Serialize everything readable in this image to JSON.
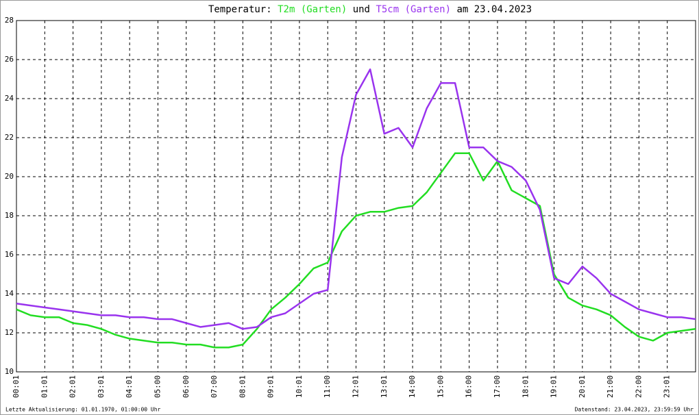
{
  "chart_data": {
    "type": "line",
    "title_prefix": "Temperatur:",
    "title_joiner": "und",
    "title_suffix": "am 23.04.2023",
    "x": [
      0,
      0.5,
      1,
      1.5,
      2,
      2.5,
      3,
      3.5,
      4,
      4.5,
      5,
      5.5,
      6,
      6.5,
      7,
      7.5,
      8,
      8.5,
      9,
      9.5,
      10,
      10.5,
      11,
      11.5,
      12,
      12.5,
      13,
      13.5,
      14,
      14.5,
      15,
      15.5,
      16,
      16.5,
      17,
      17.5,
      18,
      18.5,
      19,
      19.5,
      20,
      20.5,
      21,
      21.5,
      22,
      22.5,
      23,
      23.5,
      24
    ],
    "series": [
      {
        "name": "T2m (Garten)",
        "color": "#22dd22",
        "values": [
          13.2,
          12.9,
          12.8,
          12.8,
          12.5,
          12.4,
          12.2,
          11.9,
          11.7,
          11.6,
          11.5,
          11.5,
          11.4,
          11.4,
          11.25,
          11.25,
          11.4,
          12.2,
          13.2,
          13.8,
          14.5,
          15.3,
          15.6,
          17.2,
          18.0,
          18.2,
          18.2,
          18.4,
          18.5,
          19.2,
          20.2,
          21.2,
          21.2,
          19.8,
          20.8,
          19.3,
          18.9,
          18.5,
          15.0,
          13.8,
          13.4,
          13.2,
          12.9,
          12.3,
          11.8,
          11.6,
          12.0,
          12.1,
          12.2
        ]
      },
      {
        "name": "T5cm (Garten)",
        "color": "#9933ee",
        "values": [
          13.5,
          13.4,
          13.3,
          13.2,
          13.1,
          13.0,
          12.9,
          12.9,
          12.8,
          12.8,
          12.7,
          12.7,
          12.5,
          12.3,
          12.4,
          12.5,
          12.2,
          12.3,
          12.8,
          13.0,
          13.5,
          14.0,
          14.2,
          21.0,
          24.2,
          25.5,
          22.2,
          22.5,
          21.5,
          23.5,
          24.8,
          24.8,
          21.5,
          21.5,
          20.8,
          20.5,
          19.8,
          18.3,
          14.8,
          14.5,
          15.4,
          14.8,
          14.0,
          13.6,
          13.2,
          13.0,
          12.8,
          12.8,
          12.7
        ]
      }
    ],
    "xlim": [
      0,
      24
    ],
    "xticks": [
      {
        "value": 0,
        "label": "00:01"
      },
      {
        "value": 1,
        "label": "01:01"
      },
      {
        "value": 2,
        "label": "02:01"
      },
      {
        "value": 3,
        "label": "03:01"
      },
      {
        "value": 4,
        "label": "04:01"
      },
      {
        "value": 5,
        "label": "05:00"
      },
      {
        "value": 6,
        "label": "06:00"
      },
      {
        "value": 7,
        "label": "07:00"
      },
      {
        "value": 8,
        "label": "08:01"
      },
      {
        "value": 9,
        "label": "09:01"
      },
      {
        "value": 10,
        "label": "10:01"
      },
      {
        "value": 11,
        "label": "11:00"
      },
      {
        "value": 12,
        "label": "12:01"
      },
      {
        "value": 13,
        "label": "13:01"
      },
      {
        "value": 14,
        "label": "14:00"
      },
      {
        "value": 15,
        "label": "15:00"
      },
      {
        "value": 16,
        "label": "16:00"
      },
      {
        "value": 17,
        "label": "17:00"
      },
      {
        "value": 18,
        "label": "18:01"
      },
      {
        "value": 19,
        "label": "19:01"
      },
      {
        "value": 20,
        "label": "20:01"
      },
      {
        "value": 21,
        "label": "21:00"
      },
      {
        "value": 22,
        "label": "22:00"
      },
      {
        "value": 23,
        "label": "23:01"
      }
    ],
    "ylim": [
      10,
      28
    ],
    "yticks": [
      10,
      12,
      14,
      16,
      18,
      20,
      22,
      24,
      26,
      28
    ],
    "grid": true,
    "footer_left": "Letzte Aktualisierung: 01.01.1970, 01:00:00 Uhr",
    "footer_right": "Datenstand: 23.04.2023, 23:59:59 Uhr"
  }
}
